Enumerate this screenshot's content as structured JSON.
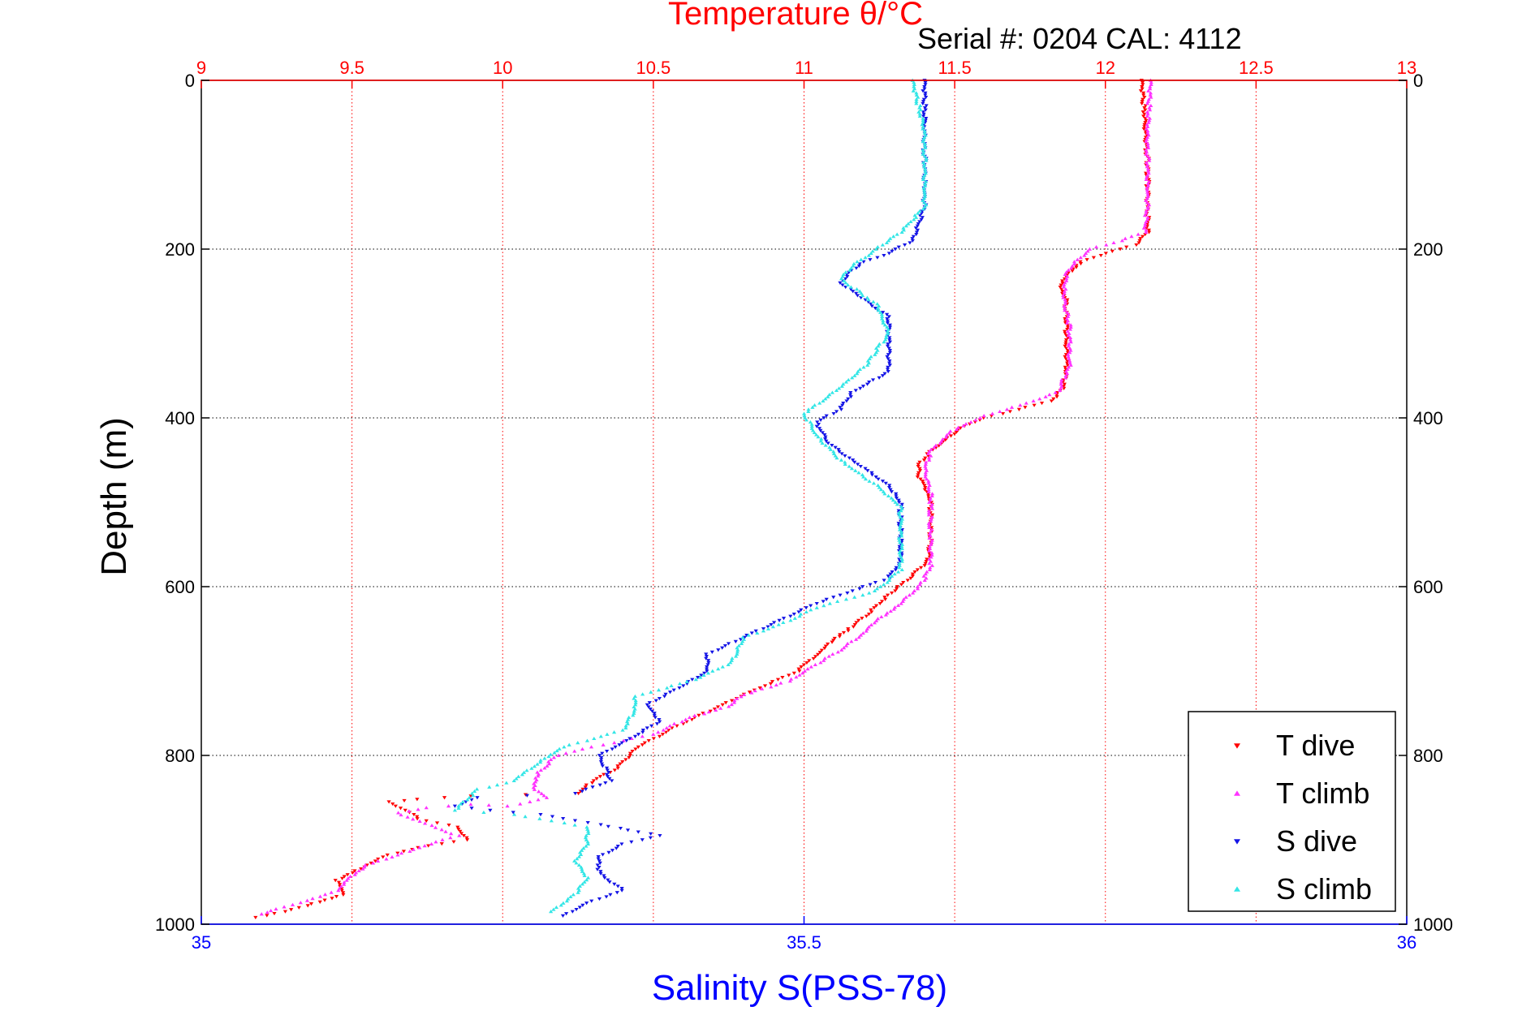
{
  "chart_data": {
    "type": "scatter",
    "title": "Temperature θ/°C",
    "subtitle": "Serial #: 0204  CAL: 4112",
    "ylabel": "Depth (m)",
    "xlabel_bottom": "Salinity S(PSS-78)",
    "colors": {
      "temperature_axis": "#ff0000",
      "salinity_axis": "#0000ff",
      "t_dive": "#ff0000",
      "t_climb": "#ff33ff",
      "s_dive": "#1414e6",
      "s_climb": "#33e6e6"
    },
    "y_axis": {
      "range": [
        0,
        1000
      ],
      "reversed": true,
      "ticks": [
        0,
        200,
        400,
        600,
        800,
        1000
      ],
      "tick_labels": [
        "0",
        "200",
        "400",
        "600",
        "800",
        "1000"
      ]
    },
    "temperature_axis": {
      "position": "top",
      "range": [
        9,
        13
      ],
      "ticks": [
        9,
        9.5,
        10,
        10.5,
        11,
        11.5,
        12,
        12.5,
        13
      ],
      "tick_labels": [
        "9",
        "9.5",
        "10",
        "10.5",
        "11",
        "11.5",
        "12",
        "12.5",
        "13"
      ]
    },
    "salinity_axis": {
      "position": "bottom",
      "range": [
        35,
        36
      ],
      "ticks": [
        35,
        35.5,
        36
      ],
      "tick_labels": [
        "35",
        "35.5",
        "36"
      ]
    },
    "grid": true,
    "legend": {
      "placement": "bottom-right",
      "entries": [
        "T dive",
        "T climb",
        "S dive",
        "S climb"
      ]
    },
    "series": [
      {
        "name": "T dive",
        "axis": "temperature",
        "marker": "triangle-down",
        "points": [
          [
            12.12,
            0
          ],
          [
            12.13,
            40
          ],
          [
            12.14,
            100
          ],
          [
            12.14,
            180
          ],
          [
            12.1,
            195
          ],
          [
            12.0,
            205
          ],
          [
            11.92,
            215
          ],
          [
            11.88,
            228
          ],
          [
            11.85,
            245
          ],
          [
            11.87,
            260
          ],
          [
            11.87,
            300
          ],
          [
            11.87,
            340
          ],
          [
            11.86,
            365
          ],
          [
            11.82,
            380
          ],
          [
            11.6,
            400
          ],
          [
            11.52,
            412
          ],
          [
            11.42,
            440
          ],
          [
            11.38,
            455
          ],
          [
            11.38,
            470
          ],
          [
            11.4,
            480
          ],
          [
            11.42,
            500
          ],
          [
            11.42,
            540
          ],
          [
            11.41,
            570
          ],
          [
            11.35,
            590
          ],
          [
            11.28,
            610
          ],
          [
            11.22,
            630
          ],
          [
            11.15,
            650
          ],
          [
            11.08,
            668
          ],
          [
            10.98,
            700
          ],
          [
            10.82,
            725
          ],
          [
            10.7,
            745
          ],
          [
            10.58,
            765
          ],
          [
            10.45,
            790
          ],
          [
            10.38,
            815
          ],
          [
            10.3,
            830
          ],
          [
            10.25,
            845
          ],
          [
            9.9,
            848
          ],
          [
            9.72,
            852
          ],
          [
            9.62,
            855
          ],
          [
            9.68,
            865
          ],
          [
            9.72,
            875
          ],
          [
            9.85,
            885
          ],
          [
            9.88,
            900
          ],
          [
            9.75,
            907
          ],
          [
            9.62,
            918
          ],
          [
            9.55,
            930
          ],
          [
            9.45,
            948
          ],
          [
            9.47,
            965
          ],
          [
            9.35,
            978
          ],
          [
            9.28,
            985
          ],
          [
            9.18,
            992
          ]
        ]
      },
      {
        "name": "T climb",
        "axis": "temperature",
        "marker": "triangle-up",
        "points": [
          [
            12.15,
            0
          ],
          [
            12.14,
            60
          ],
          [
            12.14,
            150
          ],
          [
            12.13,
            180
          ],
          [
            12.05,
            190
          ],
          [
            11.95,
            200
          ],
          [
            11.9,
            215
          ],
          [
            11.87,
            230
          ],
          [
            11.86,
            255
          ],
          [
            11.88,
            290
          ],
          [
            11.88,
            340
          ],
          [
            11.84,
            370
          ],
          [
            11.72,
            385
          ],
          [
            11.62,
            395
          ],
          [
            11.55,
            405
          ],
          [
            11.48,
            418
          ],
          [
            11.42,
            440
          ],
          [
            11.4,
            460
          ],
          [
            11.42,
            490
          ],
          [
            11.42,
            530
          ],
          [
            11.42,
            575
          ],
          [
            11.4,
            590
          ],
          [
            11.38,
            600
          ],
          [
            11.35,
            610
          ],
          [
            11.32,
            620
          ],
          [
            11.25,
            638
          ],
          [
            11.18,
            660
          ],
          [
            11.12,
            675
          ],
          [
            11.05,
            690
          ],
          [
            11.0,
            700
          ],
          [
            10.95,
            712
          ],
          [
            10.8,
            728
          ],
          [
            10.75,
            742
          ],
          [
            10.62,
            755
          ],
          [
            10.5,
            775
          ],
          [
            10.3,
            790
          ],
          [
            10.18,
            800
          ],
          [
            10.12,
            820
          ],
          [
            10.1,
            838
          ],
          [
            10.15,
            850
          ],
          [
            10.02,
            860
          ],
          [
            9.9,
            858
          ],
          [
            9.75,
            862
          ],
          [
            9.65,
            868
          ],
          [
            9.72,
            878
          ],
          [
            9.8,
            888
          ],
          [
            9.85,
            895
          ],
          [
            9.76,
            905
          ],
          [
            9.65,
            918
          ],
          [
            9.55,
            930
          ],
          [
            9.48,
            948
          ],
          [
            9.45,
            960
          ],
          [
            9.35,
            972
          ],
          [
            9.25,
            982
          ],
          [
            9.2,
            988
          ]
        ]
      },
      {
        "name": "S dive",
        "axis": "salinity",
        "marker": "triangle-down",
        "points": [
          [
            35.6,
            0
          ],
          [
            35.6,
            60
          ],
          [
            35.6,
            150
          ],
          [
            35.59,
            190
          ],
          [
            35.57,
            205
          ],
          [
            35.55,
            215
          ],
          [
            35.54,
            225
          ],
          [
            35.53,
            240
          ],
          [
            35.55,
            260
          ],
          [
            35.57,
            280
          ],
          [
            35.57,
            320
          ],
          [
            35.57,
            345
          ],
          [
            35.54,
            370
          ],
          [
            35.53,
            390
          ],
          [
            35.51,
            405
          ],
          [
            35.52,
            430
          ],
          [
            35.55,
            460
          ],
          [
            35.57,
            480
          ],
          [
            35.58,
            500
          ],
          [
            35.58,
            540
          ],
          [
            35.58,
            570
          ],
          [
            35.57,
            590
          ],
          [
            35.54,
            605
          ],
          [
            35.51,
            620
          ],
          [
            35.48,
            640
          ],
          [
            35.45,
            660
          ],
          [
            35.42,
            680
          ],
          [
            35.42,
            700
          ],
          [
            35.39,
            725
          ],
          [
            35.37,
            740
          ],
          [
            35.38,
            760
          ],
          [
            35.35,
            785
          ],
          [
            35.33,
            800
          ],
          [
            35.34,
            830
          ],
          [
            35.31,
            845
          ],
          [
            35.23,
            850
          ],
          [
            35.21,
            860
          ],
          [
            35.24,
            865
          ],
          [
            35.28,
            870
          ],
          [
            35.33,
            882
          ],
          [
            35.38,
            895
          ],
          [
            35.35,
            905
          ],
          [
            35.33,
            920
          ],
          [
            35.33,
            940
          ],
          [
            35.35,
            960
          ],
          [
            35.32,
            975
          ],
          [
            35.3,
            990
          ]
        ]
      },
      {
        "name": "S climb",
        "axis": "salinity",
        "marker": "triangle-up",
        "points": [
          [
            35.59,
            0
          ],
          [
            35.6,
            60
          ],
          [
            35.6,
            150
          ],
          [
            35.58,
            180
          ],
          [
            35.56,
            200
          ],
          [
            35.54,
            220
          ],
          [
            35.53,
            235
          ],
          [
            35.56,
            265
          ],
          [
            35.57,
            300
          ],
          [
            35.55,
            340
          ],
          [
            35.52,
            375
          ],
          [
            35.5,
            395
          ],
          [
            35.51,
            420
          ],
          [
            35.53,
            450
          ],
          [
            35.56,
            480
          ],
          [
            35.58,
            505
          ],
          [
            35.58,
            540
          ],
          [
            35.58,
            580
          ],
          [
            35.56,
            605
          ],
          [
            35.51,
            625
          ],
          [
            35.48,
            645
          ],
          [
            35.45,
            660
          ],
          [
            35.44,
            690
          ],
          [
            35.41,
            710
          ],
          [
            35.36,
            730
          ],
          [
            35.36,
            745
          ],
          [
            35.35,
            770
          ],
          [
            35.3,
            790
          ],
          [
            35.28,
            808
          ],
          [
            35.26,
            830
          ],
          [
            35.23,
            840
          ],
          [
            35.21,
            865
          ],
          [
            35.26,
            870
          ],
          [
            35.32,
            885
          ],
          [
            35.32,
            905
          ],
          [
            35.31,
            925
          ],
          [
            35.32,
            945
          ],
          [
            35.31,
            965
          ],
          [
            35.29,
            985
          ]
        ]
      }
    ]
  }
}
